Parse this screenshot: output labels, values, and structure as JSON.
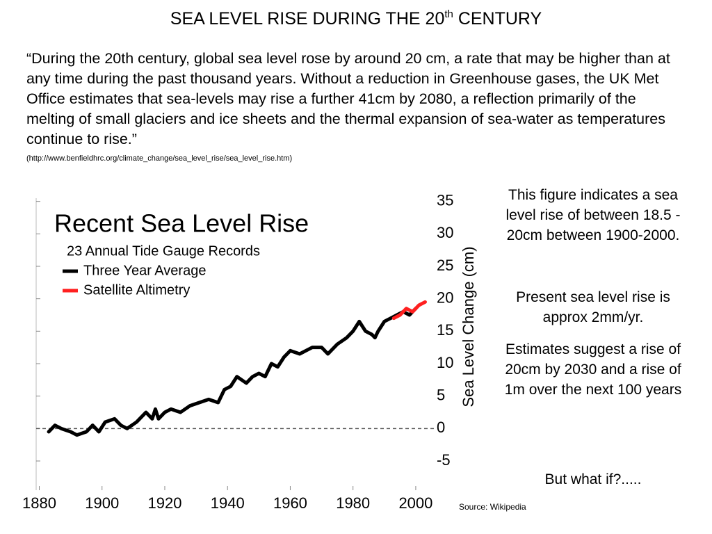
{
  "slide": {
    "title": [
      "SEA LEVEL RISE DURING THE 20",
      "th",
      "CENTURY"
    ],
    "quote": "“During the 20th century, global sea level rose by around 20 cm, a rate that may be higher than at any time during the past thousand years. Without a reduction in Greenhouse gases, the UK Met Office estimates that sea-levels may rise a further 41cm by 2080, a reflection primarily of the melting of small glaciers and ice sheets and the thermal expansion of sea-water as temperatures continue to rise.”",
    "url": "(http://www.benfieldhrc.org/climate_change/sea_level_rise/sea_level_rise.htm)",
    "notes": [
      "This figure indicates a sea level rise of between 18.5 - 20cm between 1900-2000.",
      "Present sea level rise is approx 2mm/yr.",
      "Estimates suggest a rise of 20cm by 2030 and a rise of 1m over the next 100 years",
      "But what if?....."
    ],
    "source": "Source: Wikipedia"
  },
  "chart_data": {
    "type": "line",
    "title": "Recent Sea Level Rise",
    "subtitle": "23 Annual Tide Gauge Records",
    "ylabel": "Sea Level Change (cm)",
    "series": [
      {
        "name": "Three Year Average",
        "color": "#000000",
        "x": [
          1883,
          1885,
          1887,
          1890,
          1892,
          1895,
          1897,
          1899,
          1901,
          1904,
          1906,
          1908,
          1911,
          1914,
          1916,
          1917,
          1918,
          1920,
          1922,
          1925,
          1928,
          1931,
          1934,
          1937,
          1939,
          1941,
          1943,
          1946,
          1948,
          1950,
          1952,
          1954,
          1956,
          1958,
          1960,
          1963,
          1965,
          1967,
          1970,
          1972,
          1975,
          1978,
          1980,
          1982,
          1984,
          1986,
          1987,
          1988,
          1990,
          1992,
          1994,
          1996,
          1998,
          2000
        ],
        "values": [
          -0.5,
          0.5,
          0,
          -0.5,
          -1,
          -0.5,
          0.5,
          -0.5,
          1,
          1.5,
          0.5,
          0,
          1,
          2.5,
          1.5,
          3,
          1.5,
          2.5,
          3,
          2.5,
          3.5,
          4,
          4.5,
          4,
          6,
          6.5,
          8,
          7,
          8,
          8.5,
          8,
          10,
          9.5,
          11,
          12,
          11.5,
          12,
          12.5,
          12.5,
          11.5,
          13,
          14,
          15,
          16.5,
          15,
          14.5,
          14,
          15,
          16.5,
          17,
          17.5,
          18,
          17.5,
          18.5
        ]
      },
      {
        "name": "Satellite Altimetry",
        "color": "#ff2020",
        "x": [
          1993,
          1995,
          1997,
          1999,
          2001,
          2003
        ],
        "values": [
          17,
          17.5,
          18.5,
          18,
          19,
          19.5
        ]
      }
    ],
    "hline": 0,
    "xlim": [
      1879,
      2006
    ],
    "xticks": [
      1880,
      1900,
      1920,
      1940,
      1960,
      1980,
      2000
    ],
    "ylim": [
      -9.5,
      35.5
    ],
    "yticks": [
      -5,
      0,
      5,
      10,
      15,
      20,
      25,
      30,
      35
    ]
  }
}
